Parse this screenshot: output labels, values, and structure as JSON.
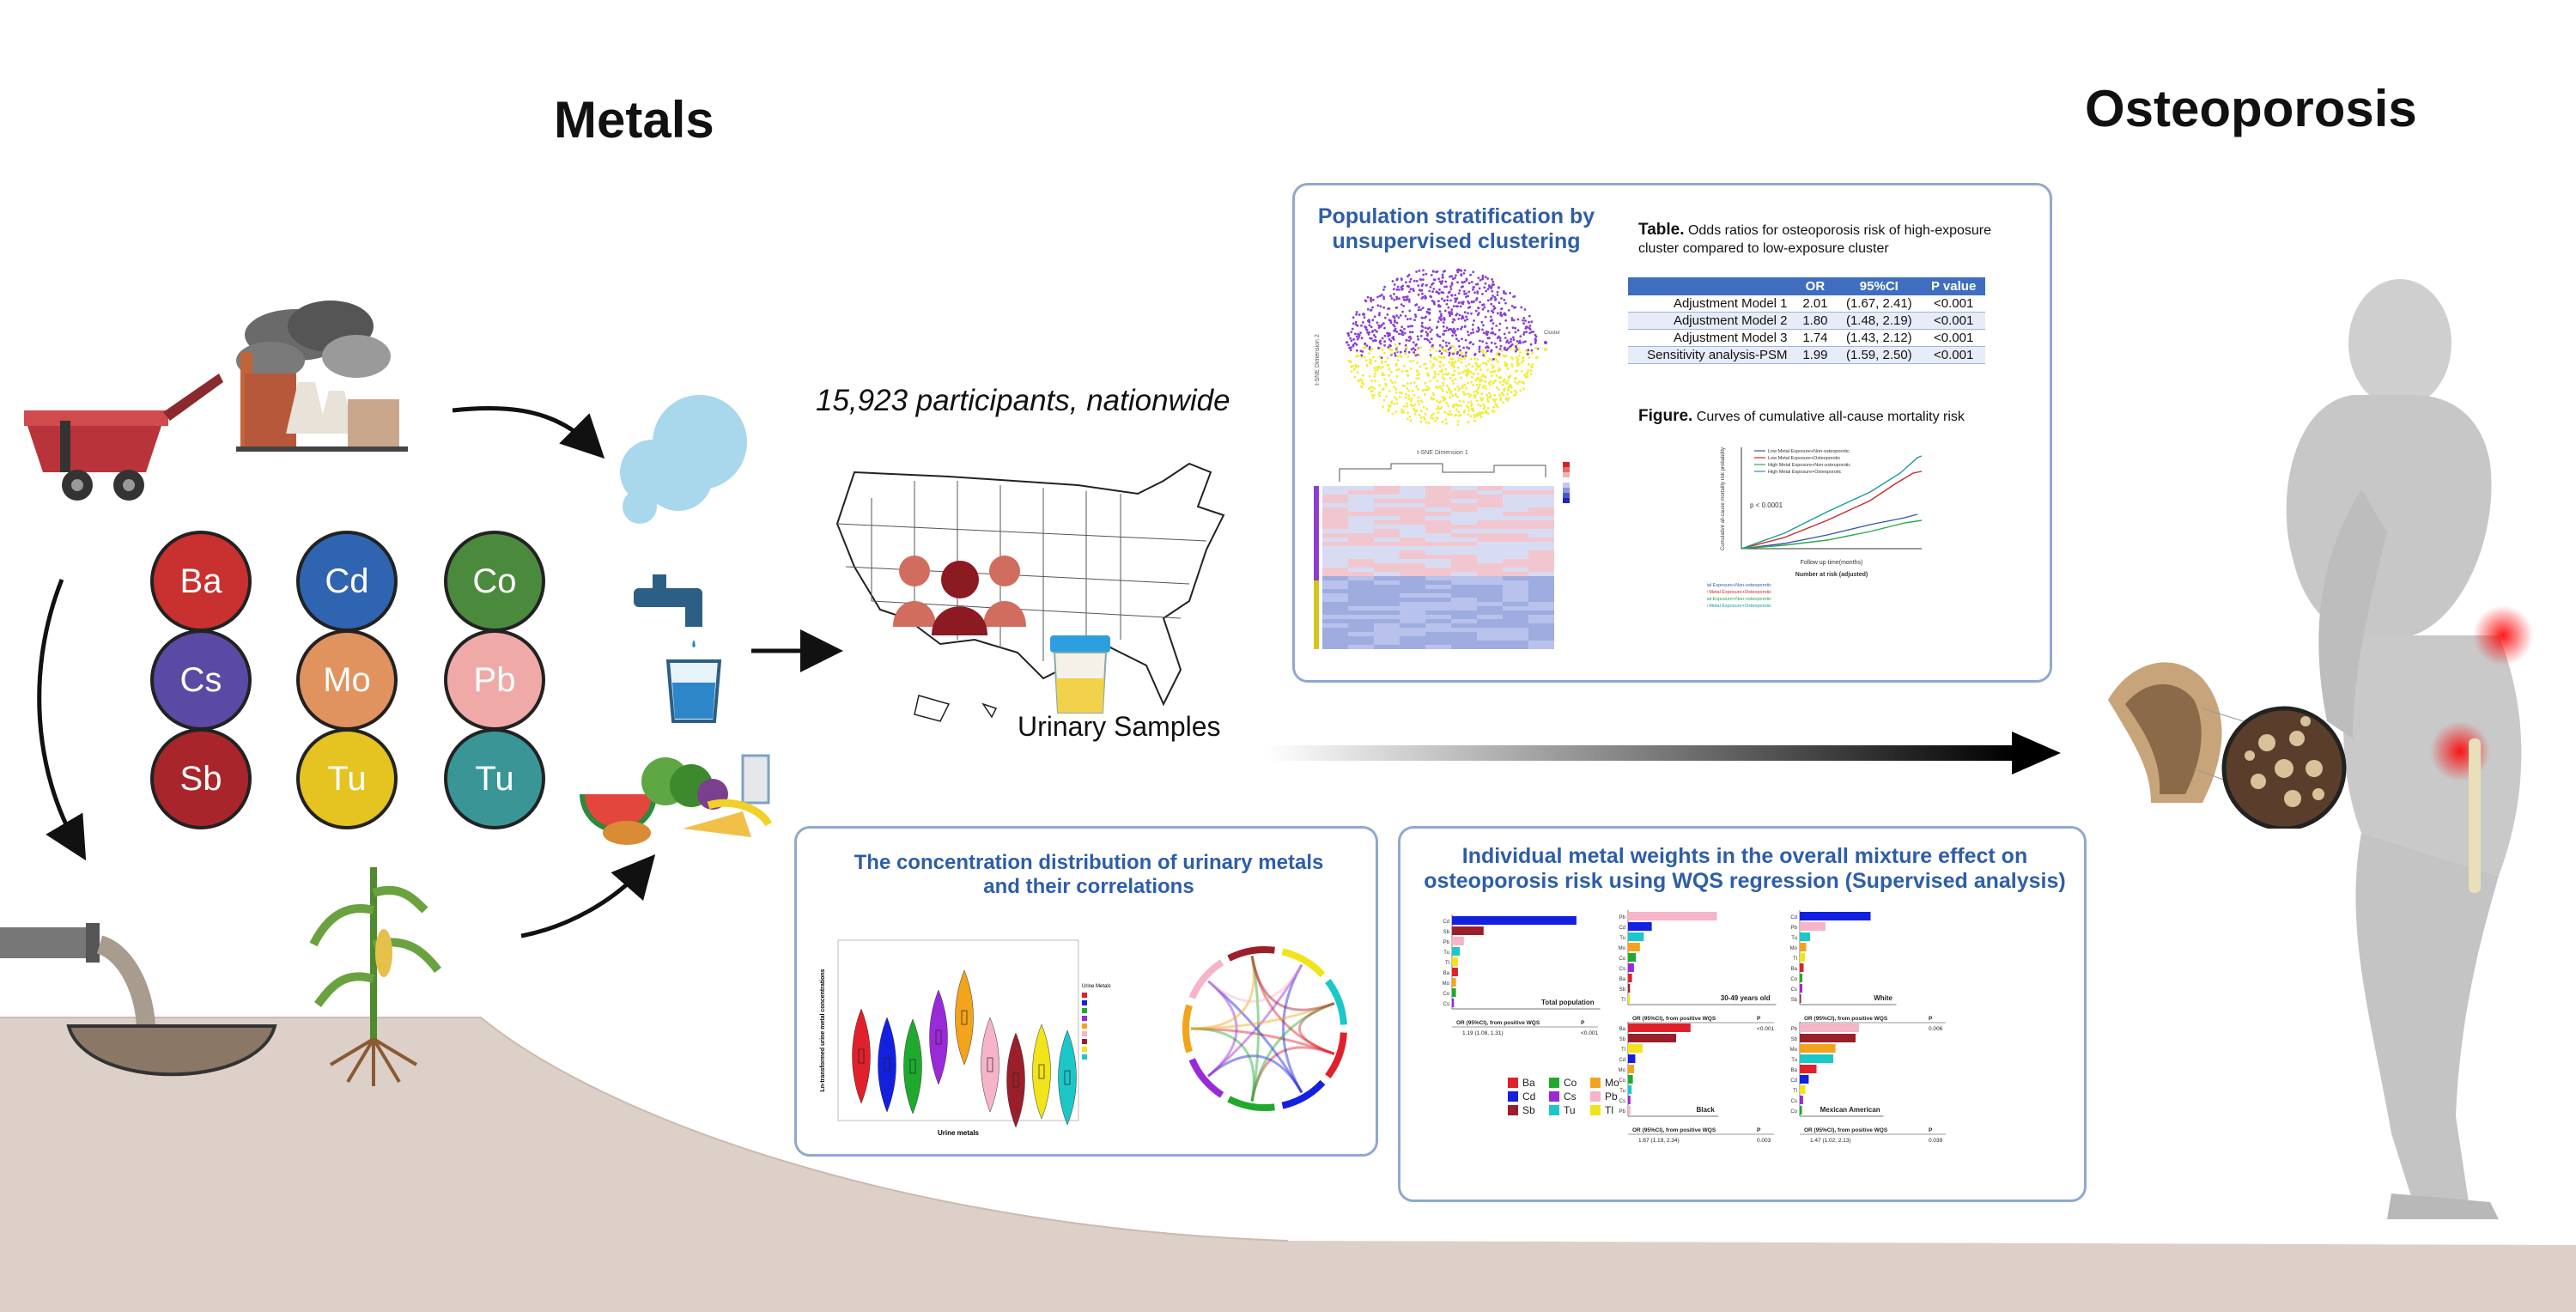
{
  "headings": {
    "metals": "Metals",
    "osteoporosis": "Osteoporosis"
  },
  "metals": [
    {
      "symbol": "Ba",
      "color": "#c8312f"
    },
    {
      "symbol": "Cd",
      "color": "#2f64b1"
    },
    {
      "symbol": "Co",
      "color": "#4b8a3d"
    },
    {
      "symbol": "Cs",
      "color": "#5a4aa3"
    },
    {
      "symbol": "Mo",
      "color": "#e1935f"
    },
    {
      "symbol": "Pb",
      "color": "#efaaa8"
    },
    {
      "symbol": "Sb",
      "color": "#a8262b"
    },
    {
      "symbol": "Tu",
      "color": "#e5c321"
    },
    {
      "symbol": "Tu",
      "color": "#3a9597"
    }
  ],
  "study": {
    "participants": "15,923 participants, nationwide",
    "samples": "Urinary Samples"
  },
  "clustering_panel": {
    "title": "Population stratification by unsupervised clustering",
    "tsne_x_label": "t-SNE Dimension 1",
    "tsne_y_label": "t-SNE Dimension 2",
    "cluster_label": "Cluster",
    "table_caption_bold": "Table.",
    "table_caption": "Odds ratios for osteoporosis risk of high-exposure cluster compared to low-exposure cluster",
    "table_headers": [
      "",
      "OR",
      "95%CI",
      "P value"
    ],
    "table_rows": [
      [
        "Adjustment Model 1",
        "2.01",
        "(1.67, 2.41)",
        "<0.001"
      ],
      [
        "Adjustment Model 2",
        "1.80",
        "(1.48, 2.19)",
        "<0.001"
      ],
      [
        "Adjustment Model 3",
        "1.74",
        "(1.43, 2.12)",
        "<0.001"
      ],
      [
        "Sensitivity analysis-PSM",
        "1.99",
        "(1.59, 2.50)",
        "<0.001"
      ]
    ],
    "figure_caption_bold": "Figure.",
    "figure_caption": "Curves of cumulative all-cause mortality risk",
    "km_p": "p < 0.0001",
    "km_x_label": "Follow up time(months)",
    "km_y_label": "Cumulative all-cause mortality risk probability",
    "km_risk_title": "Number at risk (adjusted)",
    "km_legend": [
      {
        "label": "Low Metal Exposure+Non-osteoporotic",
        "color": "#3556b0"
      },
      {
        "label": "Low Metal Exposure+Osteoporotic",
        "color": "#d0262b"
      },
      {
        "label": "High Metal Exposure+Non-osteoporotic",
        "color": "#2aa84a"
      },
      {
        "label": "High Metal Exposure+Osteoporotic",
        "color": "#1a9a9a"
      }
    ]
  },
  "distribution_panel": {
    "title": "The concentration distribution of urinary metals  and their correlations",
    "x_label": "Urine metals",
    "y_label": "Ln-transformed urine metal concentrations",
    "legend_title": "Urine Metals"
  },
  "wqs_panel": {
    "title": "Individual metal weights in the overall mixture effect on osteoporosis risk using WQS regression (Supervised analysis)",
    "subplots": [
      {
        "name": "Total population",
        "or_header": "OR (95%CI),  from positive WQS",
        "p_header": "P",
        "or": "1.19 (1.08, 1.31)",
        "p": "<0.001"
      },
      {
        "name": "30-49 years old",
        "or_header": "OR (95%CI),  from positive WQS",
        "p_header": "P",
        "or": "1.78 (1.44, 2.20)",
        "p": "<0.001"
      },
      {
        "name": "White",
        "or_header": "OR (95%CI),  from positive WQS",
        "p_header": "P",
        "or": "1.23 (1.06, 1.43)",
        "p": "0.006"
      },
      {
        "name": "Black",
        "or_header": "OR (95%CI),  from positive WQS",
        "p_header": "P",
        "or": "1.67 (1.19, 2.34)",
        "p": "0.003"
      },
      {
        "name": "Mexican American",
        "or_header": "OR (95%CI),  from positive WQS",
        "p_header": "P",
        "or": "1.47 (1.02, 2.13)",
        "p": "0.039"
      }
    ],
    "legend": [
      {
        "label": "Ba",
        "color": "#e0202a"
      },
      {
        "label": "Co",
        "color": "#1faa2e"
      },
      {
        "label": "Mo",
        "color": "#f4a31c"
      },
      {
        "label": "Cd",
        "color": "#1320e0"
      },
      {
        "label": "Cs",
        "color": "#9a2ad8"
      },
      {
        "label": "Pb",
        "color": "#f6b4c8"
      },
      {
        "label": "Sb",
        "color": "#9b1f2a"
      },
      {
        "label": "Tu",
        "color": "#1cc7c7"
      },
      {
        "label": "Tl",
        "color": "#f2e41a"
      }
    ]
  }
}
